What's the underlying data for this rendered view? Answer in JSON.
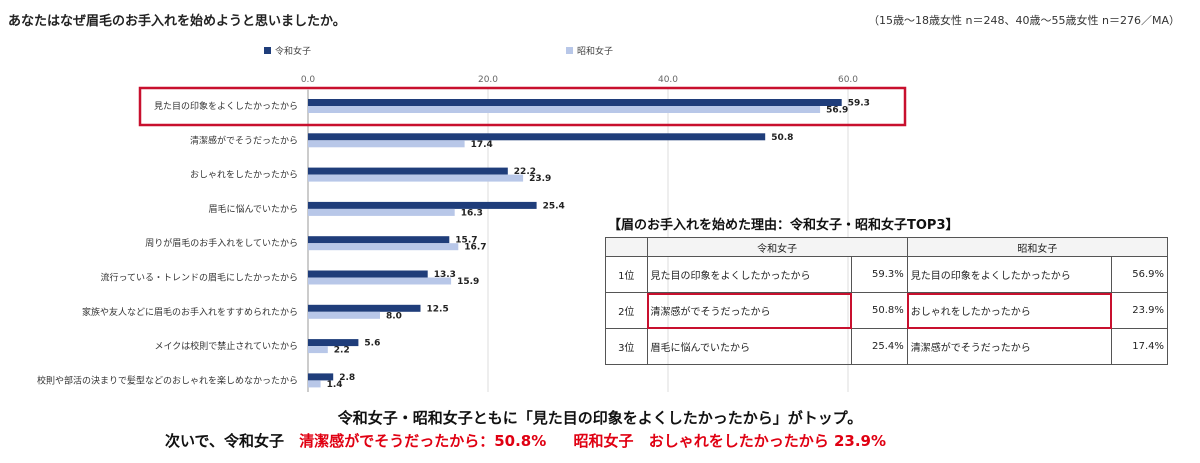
{
  "question": "あなたはなぜ眉毛のお手入れを始めようと思いましたか。",
  "sample_note": "（15歳～18歳女性 n＝248、40歳～55歳女性 n＝276／MA）",
  "colors": {
    "reiwa": "#1f3d7a",
    "showa": "#b8c7e8",
    "highlight": "#c8102e",
    "accent_red": "#e00012"
  },
  "chart_data": {
    "type": "bar",
    "orientation": "horizontal",
    "title": "",
    "xlim": [
      0,
      60
    ],
    "x_ticks": [
      "0.0",
      "20.0",
      "40.0",
      "60.0"
    ],
    "grid": true,
    "legend_placement": "top",
    "categories": [
      "見た目の印象をよくしたかったから",
      "清潔感がでそうだったから",
      "おしゃれをしたかったから",
      "眉毛に悩んでいたから",
      "周りが眉毛のお手入れをしていたから",
      "流行っている・トレンドの眉毛にしたかったから",
      "家族や友人などに眉毛のお手入れをすすめられたから",
      "メイクは校則で禁止されていたから",
      "校則や部活の決まりで髪型などのおしゃれを楽しめなかったから"
    ],
    "series": [
      {
        "name": "令和女子",
        "values": [
          59.3,
          50.8,
          22.2,
          25.4,
          15.7,
          13.3,
          12.5,
          5.6,
          2.8
        ],
        "labels": [
          "59.3",
          "50.8",
          "22.2",
          "25.4",
          "15.7",
          "13.3",
          "12.5",
          "5.6",
          "2.8"
        ]
      },
      {
        "name": "昭和女子",
        "values": [
          56.9,
          17.4,
          23.9,
          16.3,
          16.7,
          15.9,
          8.0,
          2.2,
          1.4
        ],
        "labels": [
          "56.9",
          "17.4",
          "23.9",
          "16.3",
          "16.7",
          "15.9",
          "8.0",
          "2.2",
          "1.4"
        ]
      }
    ],
    "highlighted_category": "見た目の印象をよくしたかったから"
  },
  "top3": {
    "title": "【眉のお手入れを始めた理由：令和女子・昭和女子TOP3】",
    "headers": [
      "令和女子",
      "昭和女子"
    ],
    "rows": [
      {
        "rank": "1位",
        "reiwa_reason": "見た目の印象をよくしたかったから",
        "reiwa_pct": "59.3%",
        "showa_reason": "見た目の印象をよくしたかったから",
        "showa_pct": "56.9%"
      },
      {
        "rank": "2位",
        "reiwa_reason": "清潔感がでそうだったから",
        "reiwa_pct": "50.8%",
        "showa_reason": "おしゃれをしたかったから",
        "showa_pct": "23.9%"
      },
      {
        "rank": "3位",
        "reiwa_reason": "眉毛に悩んでいたから",
        "reiwa_pct": "25.4%",
        "showa_reason": "清潔感がでそうだったから",
        "showa_pct": "17.4%"
      }
    ]
  },
  "conclusion": {
    "line1": "令和女子・昭和女子ともに「見た目の印象をよくしたかったから」がトップ。",
    "line2_prefix": "次いで、令和女子",
    "line2_reiwa": "清潔感がでそうだったから：50.8%",
    "line2_showa_label": "昭和女子",
    "line2_showa": "おしゃれをしたかったから 23.9%"
  }
}
